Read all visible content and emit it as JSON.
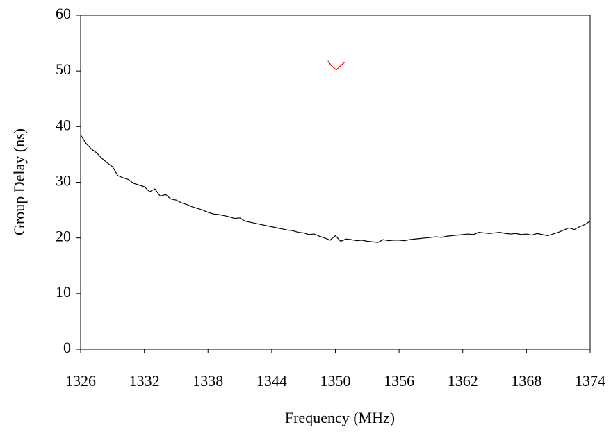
{
  "chart_data": {
    "type": "line",
    "x_label": "Frequency (MHz)",
    "y_label": "Group Delay (ns)",
    "xlim": [
      1326,
      1374
    ],
    "xticks": [
      1326,
      1332,
      1338,
      1344,
      1350,
      1356,
      1362,
      1368,
      1374
    ],
    "ylim": [
      0,
      60
    ],
    "yticks": [
      0,
      10,
      20,
      30,
      40,
      50,
      60
    ],
    "series": [
      {
        "color": "#000000",
        "x": [
          1326,
          1326.5,
          1327,
          1327.5,
          1328,
          1328.5,
          1329,
          1329.5,
          1330,
          1330.5,
          1331,
          1331.5,
          1332,
          1332.5,
          1333,
          1333.5,
          1334,
          1334.5,
          1335,
          1335.5,
          1336,
          1336.5,
          1337,
          1337.5,
          1338,
          1338.5,
          1339,
          1339.5,
          1340,
          1340.5,
          1341,
          1341.5,
          1342,
          1342.5,
          1343,
          1343.5,
          1344,
          1344.5,
          1345,
          1345.5,
          1346,
          1346.5,
          1347,
          1347.5,
          1348,
          1348.5,
          1349,
          1349.5,
          1350,
          1350.5,
          1351,
          1351.5,
          1352,
          1352.5,
          1353,
          1353.5,
          1354,
          1354.5,
          1355,
          1355.5,
          1356,
          1356.5,
          1357,
          1357.5,
          1358,
          1358.5,
          1359,
          1359.5,
          1360,
          1360.5,
          1361,
          1361.5,
          1362,
          1362.5,
          1363,
          1363.5,
          1364,
          1364.5,
          1365,
          1365.5,
          1366,
          1366.5,
          1367,
          1367.5,
          1368,
          1368.5,
          1369,
          1369.5,
          1370,
          1370.5,
          1371,
          1371.5,
          1372,
          1372.5,
          1373,
          1373.5,
          1374
        ],
        "values": [
          38.5,
          37,
          36,
          35.3,
          34.3,
          33.5,
          32.8,
          31.2,
          30.8,
          30.5,
          29.8,
          29.5,
          29.2,
          28.3,
          28.8,
          27.5,
          27.8,
          27,
          26.8,
          26.3,
          26,
          25.6,
          25.3,
          25,
          24.6,
          24.3,
          24.2,
          24,
          23.8,
          23.5,
          23.6,
          23,
          22.8,
          22.6,
          22.4,
          22.2,
          22,
          21.8,
          21.6,
          21.4,
          21.3,
          21,
          20.9,
          20.6,
          20.7,
          20.3,
          20,
          19.6,
          20.4,
          19.4,
          19.8,
          19.7,
          19.5,
          19.6,
          19.4,
          19.3,
          19.2,
          19.7,
          19.5,
          19.6,
          19.6,
          19.5,
          19.7,
          19.8,
          19.9,
          20,
          20.1,
          20.2,
          20.1,
          20.3,
          20.4,
          20.5,
          20.6,
          20.7,
          20.6,
          21,
          20.9,
          20.8,
          20.9,
          21,
          20.8,
          20.7,
          20.8,
          20.6,
          20.7,
          20.5,
          20.8,
          20.6,
          20.4,
          20.7,
          21,
          21.4,
          21.8,
          21.5,
          22,
          22.4,
          23
        ]
      },
      {
        "color": "#ff0000",
        "x": [
          1349.3,
          1349.6,
          1349.9,
          1350.1,
          1350.4,
          1350.7,
          1350.9
        ],
        "values": [
          51.8,
          51,
          50.5,
          50.2,
          50.8,
          51.3,
          51.6
        ]
      }
    ]
  }
}
